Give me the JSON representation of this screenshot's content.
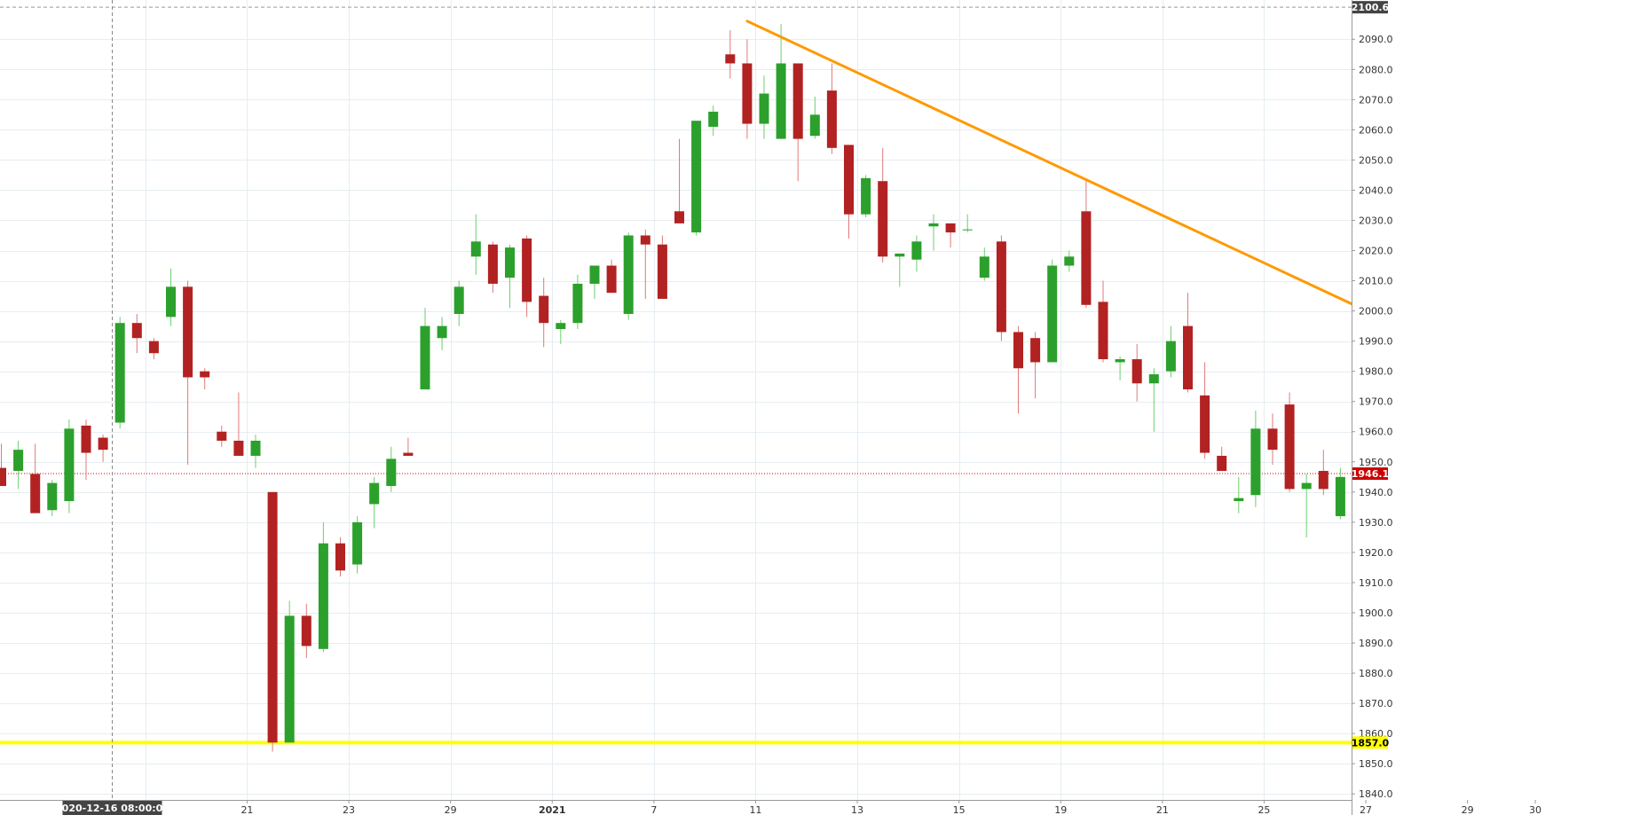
{
  "chart_data": {
    "type": "candlestick",
    "y_axis": {
      "ylim": [
        1838,
        2103
      ],
      "ticks": [
        1840,
        1850,
        1860,
        1870,
        1880,
        1890,
        1900,
        1910,
        1920,
        1930,
        1940,
        1950,
        1960,
        1970,
        1980,
        1990,
        2000,
        2010,
        2020,
        2030,
        2040,
        2050,
        2060,
        2070,
        2080,
        2090
      ],
      "tick_labels": [
        "1840.0",
        "1850.0",
        "1860.0",
        "1870.0",
        "1880.0",
        "1890.0",
        "1900.0",
        "1910.0",
        "1920.0",
        "1930.0",
        "1940.0",
        "1950.0",
        "1960.0",
        "1970.0",
        "1980.0",
        "1990.0",
        "2000.0",
        "2010.0",
        "2020.0",
        "2030.0",
        "2040.0",
        "2050.0",
        "2060.0",
        "2070.0",
        "2080.0",
        "2090.0"
      ]
    },
    "x_axis": {
      "ticks": [
        {
          "i": 8.5,
          "label": "17",
          "bold": false
        },
        {
          "i": 14.5,
          "label": "21",
          "bold": false
        },
        {
          "i": 20.5,
          "label": "23",
          "bold": false
        },
        {
          "i": 26.5,
          "label": "29",
          "bold": false
        },
        {
          "i": 32.5,
          "label": "2021",
          "bold": true
        },
        {
          "i": 38.5,
          "label": "7",
          "bold": false
        },
        {
          "i": 44.5,
          "label": "11",
          "bold": false
        },
        {
          "i": 50.5,
          "label": "13",
          "bold": false
        },
        {
          "i": 56.5,
          "label": "15",
          "bold": false
        },
        {
          "i": 62.5,
          "label": "19",
          "bold": false
        },
        {
          "i": 68.5,
          "label": "21",
          "bold": false
        },
        {
          "i": 74.5,
          "label": "25",
          "bold": false
        },
        {
          "i": 80.5,
          "label": "27",
          "bold": false
        },
        {
          "i": 86.5,
          "label": "29",
          "bold": false
        },
        {
          "i": 90.5,
          "label": "30",
          "bold": false
        }
      ]
    },
    "candles": [
      [
        1948,
        1956,
        1942,
        1942
      ],
      [
        1947,
        1957,
        1941,
        1954
      ],
      [
        1946,
        1956,
        1935,
        1933
      ],
      [
        1934,
        1944,
        1932,
        1943
      ],
      [
        1937,
        1964,
        1933,
        1961
      ],
      [
        1962,
        1964,
        1944,
        1953
      ],
      [
        1958,
        1959,
        1950,
        1954
      ],
      [
        1963,
        1998,
        1961,
        1996
      ],
      [
        1996,
        1999,
        1986,
        1991
      ],
      [
        1990,
        1991,
        1984,
        1986
      ],
      [
        1998,
        2014,
        1995,
        2008
      ],
      [
        2008,
        2010,
        1949,
        1978
      ],
      [
        1980,
        1981,
        1974,
        1978
      ],
      [
        1960,
        1962,
        1955,
        1957
      ],
      [
        1957,
        1973,
        1952,
        1952
      ],
      [
        1952,
        1959,
        1948,
        1957
      ],
      [
        1940,
        1940,
        1854,
        1857
      ],
      [
        1857,
        1904,
        1857,
        1899
      ],
      [
        1899,
        1903,
        1885,
        1889
      ],
      [
        1888,
        1930,
        1887,
        1923
      ],
      [
        1923,
        1925,
        1912,
        1914
      ],
      [
        1916,
        1932,
        1913,
        1930
      ],
      [
        1936,
        1945,
        1928,
        1943
      ],
      [
        1942,
        1955,
        1940,
        1951
      ],
      [
        1953,
        1958,
        1952,
        1952
      ],
      [
        1974,
        2001,
        1974,
        1995
      ],
      [
        1991,
        1998,
        1987,
        1995
      ],
      [
        1999,
        2010,
        1995,
        2008
      ],
      [
        2018,
        2032,
        2012,
        2023
      ],
      [
        2022,
        2023,
        2006,
        2009
      ],
      [
        2011,
        2022,
        2001,
        2021
      ],
      [
        2024,
        2025,
        1998,
        2003
      ],
      [
        2005,
        2011,
        1988,
        1996
      ],
      [
        1994,
        1997,
        1989,
        1996
      ],
      [
        1996,
        2012,
        1994,
        2009
      ],
      [
        2009,
        2015,
        2004,
        2015
      ],
      [
        2015,
        2017,
        2006,
        2006
      ],
      [
        1999,
        2026,
        1997,
        2025
      ],
      [
        2025,
        2027,
        2004,
        2022
      ],
      [
        2022,
        2025,
        2004,
        2004
      ],
      [
        2033,
        2057,
        2030,
        2029
      ],
      [
        2026,
        2063,
        2025,
        2063
      ],
      [
        2061,
        2068,
        2058,
        2066
      ],
      [
        2085,
        2093,
        2077,
        2082
      ],
      [
        2082,
        2090,
        2057,
        2062
      ],
      [
        2062,
        2078,
        2057,
        2072
      ],
      [
        2057,
        2095,
        2057,
        2082
      ],
      [
        2082,
        2082,
        2043,
        2057
      ],
      [
        2058,
        2071,
        2057,
        2065
      ],
      [
        2073,
        2082,
        2052,
        2054
      ],
      [
        2055,
        2055,
        2024,
        2032
      ],
      [
        2032,
        2045,
        2031,
        2044
      ],
      [
        2043,
        2054,
        2016,
        2018
      ],
      [
        2018,
        2019,
        2008,
        2019
      ],
      [
        2017,
        2025,
        2013,
        2023
      ],
      [
        2028,
        2032,
        2020,
        2029
      ],
      [
        2029,
        2029,
        2021,
        2026
      ],
      [
        2027,
        2032,
        2026,
        2027
      ],
      [
        2011,
        2021,
        2010,
        2018
      ],
      [
        2023,
        2025,
        1990,
        1993
      ],
      [
        1993,
        1995,
        1966,
        1981
      ],
      [
        1991,
        1993,
        1971,
        1983
      ],
      [
        1983,
        2017,
        1983,
        2015
      ],
      [
        2015,
        2020,
        2013,
        2018
      ],
      [
        2033,
        2044,
        2001,
        2002
      ],
      [
        2003,
        2010,
        1983,
        1984
      ],
      [
        1983,
        1985,
        1977,
        1984
      ],
      [
        1984,
        1989,
        1970,
        1976
      ],
      [
        1976,
        1981,
        1960,
        1979
      ],
      [
        1980,
        1995,
        1978,
        1990
      ],
      [
        1995,
        2006,
        1973,
        1974
      ],
      [
        1972,
        1983,
        1951,
        1953
      ],
      [
        1952,
        1955,
        1948,
        1947
      ],
      [
        1937,
        1945,
        1933,
        1938
      ],
      [
        1939,
        1967,
        1935,
        1961
      ],
      [
        1961,
        1966,
        1949,
        1954
      ],
      [
        1969,
        1973,
        1940,
        1941
      ],
      [
        1941,
        1946,
        1925,
        1943
      ],
      [
        1947,
        1954,
        1939,
        1941
      ],
      [
        1932,
        1948,
        1931,
        1945
      ],
      [
        1944,
        1971,
        1944,
        1964
      ],
      [
        1965,
        1990,
        1964,
        1990
      ],
      [
        1985,
        1994,
        1951,
        1955
      ],
      [
        1956,
        1957,
        1914,
        1922
      ],
      [
        1921,
        1937,
        1921,
        1930
      ],
      [
        1913,
        1921,
        1887,
        1911
      ],
      [
        1911,
        1977,
        1908,
        1969
      ],
      [
        1969,
        1988,
        1967,
        1978
      ],
      [
        1964,
        1965,
        1936,
        1947
      ]
    ],
    "trendline": {
      "from": [
        44,
        2096
      ],
      "to": [
        89.5,
        1976.5
      ],
      "color": "#ff9900"
    },
    "horizontal_lines": [
      {
        "value": 1857.0,
        "label": "1857.0",
        "color": "#ffff00",
        "style": "solid"
      },
      {
        "value": 1946.1,
        "label": "1946.1",
        "color": "#cc0000",
        "style": "dotted"
      },
      {
        "value": 2100.6,
        "label": "2100.6",
        "color": "#999999",
        "style": "dashed"
      }
    ],
    "crosshair": {
      "i": 6.5,
      "label": "2020-12-16 08:00:00"
    },
    "up_color": "#2ca02c",
    "down_color": "#b22222",
    "grid": true
  }
}
